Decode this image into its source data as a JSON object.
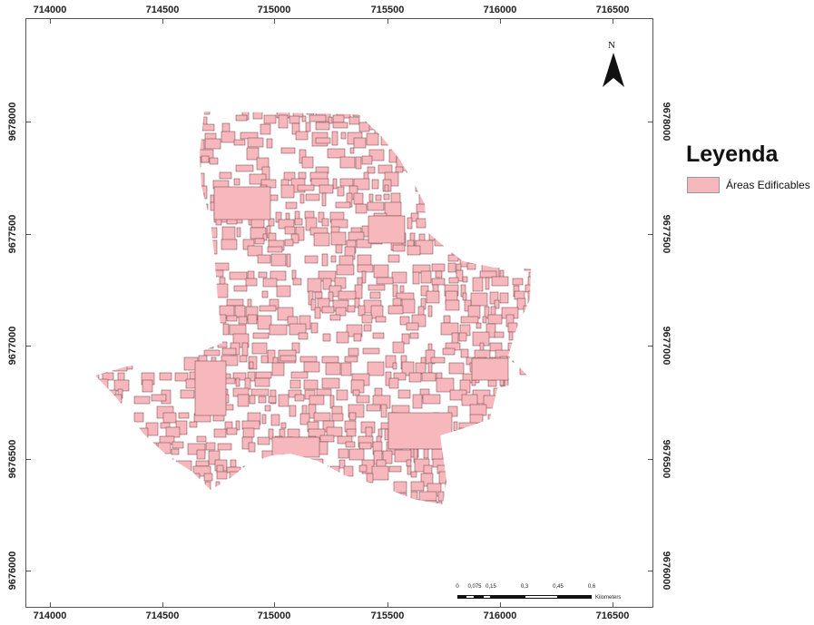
{
  "map": {
    "x_ticks": [
      "714000",
      "714500",
      "715000",
      "715500",
      "716000",
      "716500"
    ],
    "y_ticks": [
      "9678000",
      "9677500",
      "9677000",
      "9676500",
      "9676000"
    ],
    "north_label": "N",
    "feature_color": "#f7b8bd",
    "feature_stroke": "#6b3b3f"
  },
  "legend": {
    "title": "Leyenda",
    "items": [
      {
        "label": "Áreas Edificables",
        "color": "#f7b8bd"
      }
    ]
  },
  "scale_bar": {
    "labels": [
      "0",
      "0,075",
      "0,15",
      "0,3",
      "0,45",
      "0,6"
    ],
    "unit": "Kilometers"
  }
}
